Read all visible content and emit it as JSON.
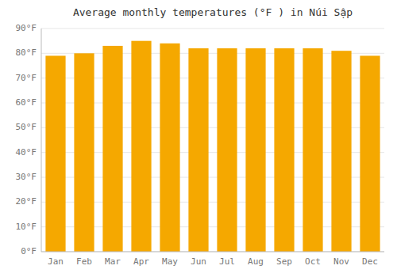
{
  "chart_data": {
    "type": "bar",
    "title": "Average monthly temperatures (°F ) in Núi Sập",
    "categories": [
      "Jan",
      "Feb",
      "Mar",
      "Apr",
      "May",
      "Jun",
      "Jul",
      "Aug",
      "Sep",
      "Oct",
      "Nov",
      "Dec"
    ],
    "values": [
      79,
      80,
      83,
      85,
      84,
      82,
      82,
      82,
      82,
      82,
      81,
      79
    ],
    "color": "#F5A800",
    "ylim": [
      0,
      90
    ],
    "yticks": [
      {
        "value": 0,
        "label": "0°F"
      },
      {
        "value": 10,
        "label": "10°F"
      },
      {
        "value": 20,
        "label": "20°F"
      },
      {
        "value": 30,
        "label": "30°F"
      },
      {
        "value": 40,
        "label": "40°F"
      },
      {
        "value": 50,
        "label": "50°F"
      },
      {
        "value": 60,
        "label": "60°F"
      },
      {
        "value": 70,
        "label": "70°F"
      },
      {
        "value": 80,
        "label": "80°F"
      },
      {
        "value": 90,
        "label": "90°F"
      }
    ],
    "grid": true
  }
}
